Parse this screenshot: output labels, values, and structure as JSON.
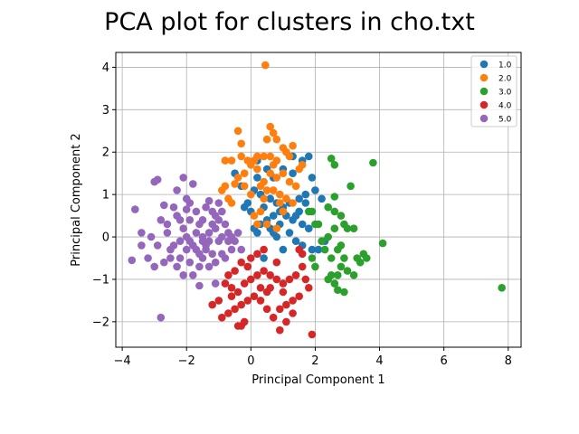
{
  "chart_data": {
    "type": "scatter",
    "title": "PCA plot for clusters in cho.txt",
    "xlabel": "Principal Component 1",
    "ylabel": "Principal Component 2",
    "xlim": [
      -4.2,
      8.4
    ],
    "ylim": [
      -2.6,
      4.35
    ],
    "xticks": [
      -4,
      -2,
      0,
      2,
      4,
      6,
      8
    ],
    "yticks": [
      -2,
      -1,
      0,
      1,
      2,
      3,
      4
    ],
    "xtick_labels": [
      "−4",
      "−2",
      "0",
      "2",
      "4",
      "6",
      "8"
    ],
    "ytick_labels": [
      "−2",
      "−1",
      "0",
      "1",
      "2",
      "3",
      "4"
    ],
    "grid": true,
    "legend_position": "top-right",
    "series": [
      {
        "name": "1.0",
        "color": "#1f77b4",
        "points": [
          [
            -0.5,
            1.5
          ],
          [
            -0.3,
            1.2
          ],
          [
            0.1,
            1.1
          ],
          [
            0.2,
            1.8
          ],
          [
            0.5,
            1.6
          ],
          [
            0.7,
            1.4
          ],
          [
            1.0,
            1.6
          ],
          [
            1.3,
            1.5
          ],
          [
            1.6,
            1.8
          ],
          [
            1.8,
            1.9
          ],
          [
            1.9,
            1.4
          ],
          [
            2.0,
            1.1
          ],
          [
            1.7,
            1.0
          ],
          [
            1.5,
            0.9
          ],
          [
            1.2,
            0.8
          ],
          [
            0.9,
            0.6
          ],
          [
            0.7,
            0.5
          ],
          [
            0.5,
            0.4
          ],
          [
            0.3,
            0.3
          ],
          [
            0.1,
            0.2
          ],
          [
            0.0,
            0.6
          ],
          [
            -0.1,
            0.8
          ],
          [
            0.3,
            1.0
          ],
          [
            0.6,
            0.9
          ],
          [
            0.8,
            0.8
          ],
          [
            1.0,
            0.7
          ],
          [
            1.4,
            0.5
          ],
          [
            1.6,
            0.3
          ],
          [
            1.8,
            0.2
          ],
          [
            1.5,
            0.6
          ],
          [
            1.3,
            0.4
          ],
          [
            1.2,
            0.1
          ],
          [
            1.4,
            -0.1
          ],
          [
            1.6,
            -0.2
          ],
          [
            1.9,
            -0.3
          ],
          [
            2.1,
            -0.3
          ],
          [
            2.3,
            -0.1
          ],
          [
            1.0,
            -0.3
          ],
          [
            0.8,
            0.0
          ],
          [
            0.4,
            -0.5
          ],
          [
            0.2,
            0.1
          ],
          [
            1.1,
            0.5
          ],
          [
            0.9,
            0.3
          ],
          [
            0.6,
            0.2
          ],
          [
            -0.2,
            0.7
          ],
          [
            0.4,
            0.7
          ],
          [
            1.7,
            0.8
          ],
          [
            2.2,
            0.9
          ],
          [
            0.2,
            1.4
          ],
          [
            0.7,
            0.1
          ],
          [
            1.3,
            1.9
          ]
        ]
      },
      {
        "name": "2.0",
        "color": "#ff7f0e",
        "points": [
          [
            0.45,
            4.05
          ],
          [
            0.6,
            2.6
          ],
          [
            0.8,
            2.3
          ],
          [
            0.5,
            2.3
          ],
          [
            0.7,
            2.45
          ],
          [
            1.1,
            2.0
          ],
          [
            1.3,
            2.15
          ],
          [
            1.2,
            1.9
          ],
          [
            1.0,
            2.1
          ],
          [
            0.8,
            1.8
          ],
          [
            0.6,
            1.9
          ],
          [
            0.4,
            1.9
          ],
          [
            0.2,
            1.9
          ],
          [
            0.1,
            1.8
          ],
          [
            -0.1,
            1.8
          ],
          [
            -0.3,
            1.9
          ],
          [
            -0.6,
            1.8
          ],
          [
            -0.8,
            1.8
          ],
          [
            -0.9,
            1.1
          ],
          [
            -0.7,
            0.9
          ],
          [
            -0.6,
            0.8
          ],
          [
            -0.4,
            1.4
          ],
          [
            -0.5,
            1.25
          ],
          [
            -0.2,
            1.2
          ],
          [
            0.0,
            1.0
          ],
          [
            0.3,
            1.2
          ],
          [
            0.5,
            1.1
          ],
          [
            0.7,
            1.1
          ],
          [
            0.9,
            1.0
          ],
          [
            1.1,
            0.9
          ],
          [
            1.2,
            1.3
          ],
          [
            1.4,
            1.2
          ],
          [
            1.5,
            1.6
          ],
          [
            1.6,
            1.7
          ],
          [
            1.0,
            1.5
          ],
          [
            0.8,
            1.4
          ],
          [
            0.6,
            1.5
          ],
          [
            0.4,
            1.3
          ],
          [
            0.2,
            1.6
          ],
          [
            0.0,
            1.7
          ],
          [
            -0.2,
            1.5
          ],
          [
            0.1,
            0.5
          ],
          [
            0.3,
            0.6
          ],
          [
            0.5,
            0.3
          ],
          [
            0.9,
            0.8
          ],
          [
            1.0,
            0.6
          ],
          [
            -0.8,
            1.2
          ],
          [
            -0.3,
            2.2
          ],
          [
            -0.4,
            2.5
          ],
          [
            0.8,
            0.2
          ],
          [
            0.2,
            0.3
          ],
          [
            1.3,
            0.8
          ],
          [
            0.7,
            1.7
          ],
          [
            0.4,
            0.9
          ]
        ]
      },
      {
        "name": "3.0",
        "color": "#2ca02c",
        "points": [
          [
            2.5,
            1.85
          ],
          [
            2.6,
            1.7
          ],
          [
            3.1,
            1.2
          ],
          [
            3.8,
            1.75
          ],
          [
            2.6,
            0.95
          ],
          [
            2.4,
            0.7
          ],
          [
            2.6,
            0.6
          ],
          [
            2.8,
            0.5
          ],
          [
            2.9,
            0.3
          ],
          [
            3.0,
            0.2
          ],
          [
            3.2,
            0.2
          ],
          [
            2.6,
            0.2
          ],
          [
            2.4,
            0.0
          ],
          [
            2.2,
            -0.1
          ],
          [
            2.1,
            0.3
          ],
          [
            2.0,
            0.3
          ],
          [
            1.9,
            0.6
          ],
          [
            1.8,
            0.6
          ],
          [
            2.3,
            -0.3
          ],
          [
            2.5,
            -0.5
          ],
          [
            2.7,
            -0.3
          ],
          [
            2.9,
            -0.5
          ],
          [
            2.8,
            -0.7
          ],
          [
            3.0,
            -0.8
          ],
          [
            2.7,
            -0.9
          ],
          [
            2.5,
            -0.9
          ],
          [
            2.4,
            -1.0
          ],
          [
            2.6,
            -1.1
          ],
          [
            2.7,
            -1.25
          ],
          [
            2.9,
            -1.3
          ],
          [
            3.3,
            -0.5
          ],
          [
            3.4,
            -0.6
          ],
          [
            3.5,
            -0.4
          ],
          [
            3.6,
            -0.5
          ],
          [
            4.1,
            -0.15
          ],
          [
            7.8,
            -1.2
          ],
          [
            1.9,
            -0.5
          ],
          [
            2.0,
            -0.7
          ],
          [
            3.2,
            -0.9
          ],
          [
            2.8,
            -0.2
          ]
        ]
      },
      {
        "name": "4.0",
        "color": "#d62728",
        "points": [
          [
            0.4,
            -0.3
          ],
          [
            0.2,
            -0.4
          ],
          [
            0.0,
            -0.5
          ],
          [
            -0.3,
            -0.6
          ],
          [
            -0.5,
            -0.8
          ],
          [
            -0.7,
            -0.9
          ],
          [
            -0.8,
            -1.1
          ],
          [
            -0.6,
            -1.2
          ],
          [
            -0.4,
            -1.3
          ],
          [
            -0.2,
            -1.1
          ],
          [
            0.0,
            -1.0
          ],
          [
            0.2,
            -0.9
          ],
          [
            0.4,
            -0.8
          ],
          [
            0.6,
            -0.9
          ],
          [
            0.8,
            -1.0
          ],
          [
            1.0,
            -1.1
          ],
          [
            1.2,
            -1.0
          ],
          [
            1.4,
            -0.9
          ],
          [
            1.6,
            -0.7
          ],
          [
            1.8,
            -1.2
          ],
          [
            1.5,
            -1.4
          ],
          [
            1.3,
            -1.5
          ],
          [
            1.1,
            -1.6
          ],
          [
            0.9,
            -1.7
          ],
          [
            0.7,
            -1.9
          ],
          [
            0.5,
            -1.7
          ],
          [
            0.3,
            -1.5
          ],
          [
            0.1,
            -1.4
          ],
          [
            -0.1,
            -1.5
          ],
          [
            -0.3,
            -1.6
          ],
          [
            -0.5,
            -1.7
          ],
          [
            -0.7,
            -1.8
          ],
          [
            -0.9,
            -1.9
          ],
          [
            -0.4,
            -2.1
          ],
          [
            -0.2,
            -2.0
          ],
          [
            0.9,
            -2.2
          ],
          [
            1.9,
            -2.3
          ],
          [
            1.1,
            -2.0
          ],
          [
            1.3,
            -1.8
          ],
          [
            -1.2,
            -1.6
          ],
          [
            -1.0,
            -1.5
          ],
          [
            0.8,
            -0.6
          ],
          [
            0.5,
            -1.3
          ],
          [
            1.6,
            -0.4
          ],
          [
            1.7,
            -1.0
          ],
          [
            0.3,
            -1.2
          ],
          [
            -0.1,
            -0.7
          ],
          [
            1.0,
            -1.3
          ],
          [
            -0.3,
            -2.1
          ],
          [
            1.5,
            -0.3
          ],
          [
            0.6,
            -1.2
          ],
          [
            -0.6,
            -1.4
          ]
        ]
      },
      {
        "name": "5.0",
        "color": "#9467bd",
        "points": [
          [
            -3.6,
            0.65
          ],
          [
            -3.4,
            0.1
          ],
          [
            -3.4,
            -0.2
          ],
          [
            -3.2,
            -0.5
          ],
          [
            -3.1,
            0.0
          ],
          [
            -3.0,
            1.3
          ],
          [
            -2.9,
            1.35
          ],
          [
            -2.8,
            0.4
          ],
          [
            -2.7,
            0.75
          ],
          [
            -2.6,
            0.1
          ],
          [
            -2.5,
            -0.5
          ],
          [
            -2.4,
            0.7
          ],
          [
            -2.3,
            1.1
          ],
          [
            -2.2,
            0.4
          ],
          [
            -2.1,
            1.4
          ],
          [
            -2.0,
            0.9
          ],
          [
            -1.9,
            0.8
          ],
          [
            -1.8,
            1.25
          ],
          [
            -1.7,
            0.6
          ],
          [
            -1.6,
            0.3
          ],
          [
            -1.5,
            0.0
          ],
          [
            -1.4,
            0.7
          ],
          [
            -1.3,
            0.85
          ],
          [
            -1.2,
            0.6
          ],
          [
            -1.1,
            0.5
          ],
          [
            -1.0,
            0.8
          ],
          [
            -0.9,
            0.6
          ],
          [
            -0.8,
            0.3
          ],
          [
            -0.7,
            0.1
          ],
          [
            -0.6,
            0.0
          ],
          [
            -0.5,
            -0.1
          ],
          [
            -0.4,
            0.1
          ],
          [
            -0.3,
            -0.3
          ],
          [
            -0.9,
            -0.4
          ],
          [
            -1.1,
            -0.6
          ],
          [
            -1.3,
            -0.7
          ],
          [
            -1.5,
            -0.5
          ],
          [
            -1.7,
            -0.3
          ],
          [
            -1.9,
            -0.6
          ],
          [
            -2.1,
            -0.9
          ],
          [
            -2.3,
            -0.7
          ],
          [
            -2.5,
            -0.3
          ],
          [
            -2.7,
            -0.6
          ],
          [
            -2.8,
            -1.9
          ],
          [
            -3.7,
            -0.55
          ],
          [
            -2.0,
            0.0
          ],
          [
            -1.8,
            -0.2
          ],
          [
            -1.6,
            -0.4
          ],
          [
            -1.4,
            -0.2
          ],
          [
            -1.2,
            -0.4
          ],
          [
            -1.0,
            -0.1
          ],
          [
            -0.8,
            -0.5
          ],
          [
            -0.6,
            -0.3
          ],
          [
            -2.2,
            -0.1
          ],
          [
            -2.4,
            -0.2
          ],
          [
            -2.6,
            0.3
          ],
          [
            -1.9,
            0.4
          ],
          [
            -1.5,
            0.4
          ],
          [
            -1.1,
            0.2
          ],
          [
            -0.9,
            0.0
          ],
          [
            -1.3,
            0.1
          ],
          [
            -1.7,
            0.1
          ],
          [
            -2.1,
            0.2
          ],
          [
            -2.3,
            0.5
          ],
          [
            -2.0,
            0.65
          ],
          [
            -1.6,
            -0.7
          ],
          [
            -1.4,
            -0.3
          ],
          [
            -1.2,
            0.3
          ],
          [
            -0.7,
            -0.1
          ],
          [
            -1.0,
            0.4
          ],
          [
            -2.2,
            -0.5
          ],
          [
            -1.8,
            -0.9
          ],
          [
            -1.6,
            -1.15
          ],
          [
            -1.1,
            -1.1
          ],
          [
            -2.9,
            -0.2
          ],
          [
            -3.0,
            -0.7
          ],
          [
            -1.3,
            -0.1
          ],
          [
            -1.5,
            -0.1
          ],
          [
            -1.9,
            -0.1
          ],
          [
            -2.0,
            -0.3
          ]
        ]
      }
    ]
  }
}
